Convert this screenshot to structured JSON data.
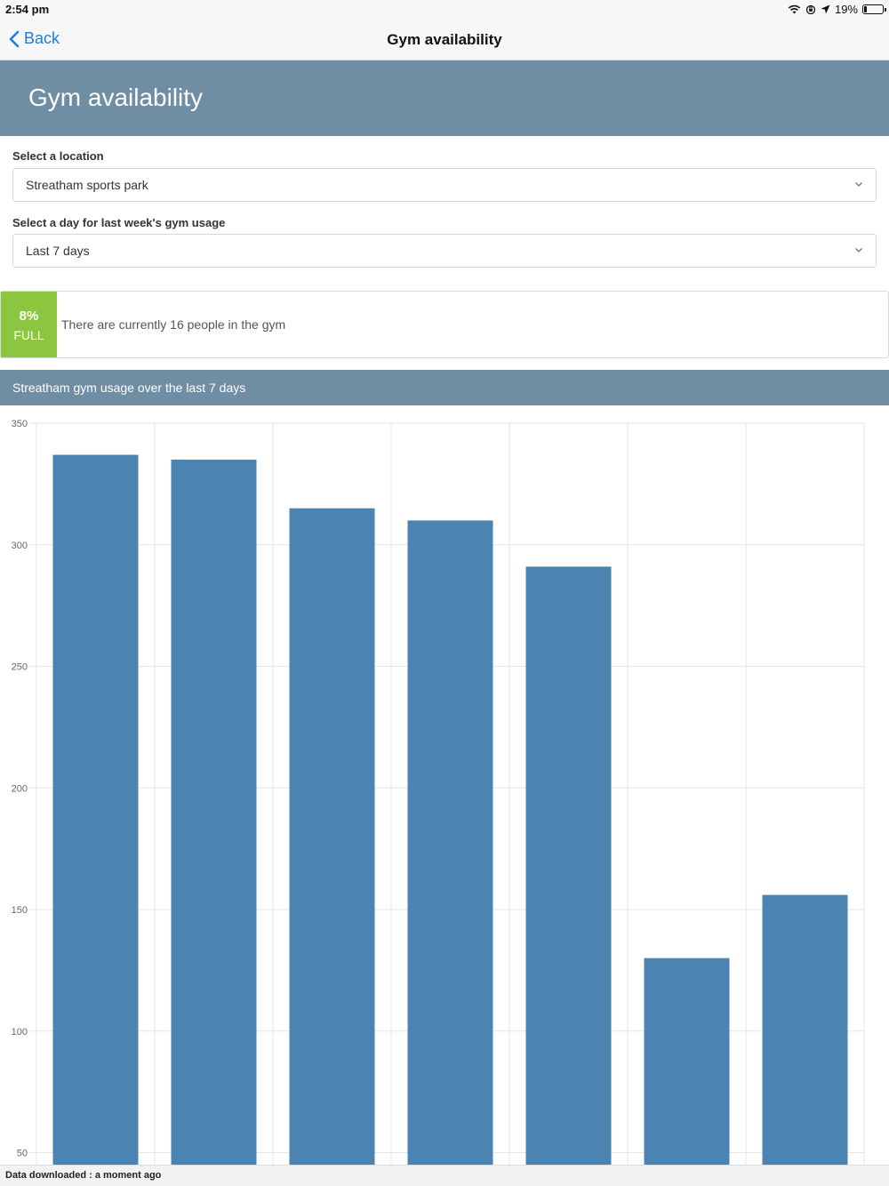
{
  "status_bar": {
    "time": "2:54 pm",
    "battery": "19%"
  },
  "nav": {
    "back_label": "Back",
    "title": "Gym availability"
  },
  "hero": {
    "title": "Gym availability"
  },
  "location": {
    "label": "Select a location",
    "value": "Streatham sports park"
  },
  "day": {
    "label": "Select a day for last week's gym usage",
    "value": "Last 7 days"
  },
  "occupancy": {
    "percent": "8%",
    "status": "FULL",
    "message": "There are currently 16 people in the gym",
    "badge_color": "#8cc63f"
  },
  "chart_header": {
    "title": "Streatham gym usage over the last 7 days"
  },
  "chart_data": {
    "type": "bar",
    "categories": [
      "",
      "",
      "",
      "",
      "",
      "",
      ""
    ],
    "values": [
      337,
      335,
      315,
      310,
      291,
      130,
      156
    ],
    "y_ticks": [
      "350",
      "300",
      "250",
      "200",
      "150",
      "100",
      "50"
    ],
    "ylim": [
      45,
      350
    ],
    "bar_color": "#4b84b0",
    "grid": true
  },
  "footer": {
    "text": "Data downloaded : a moment ago"
  }
}
